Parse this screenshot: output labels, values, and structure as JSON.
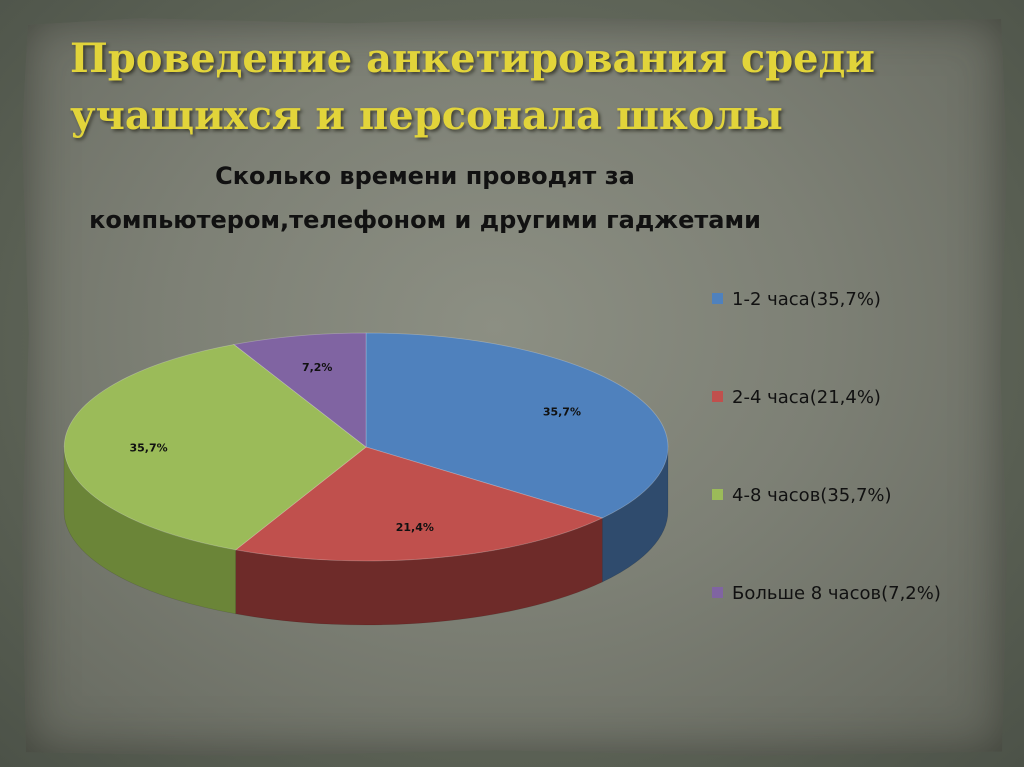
{
  "slide": {
    "title": "Проведение анкетирования среди учащихся и персонала школы"
  },
  "chart_data": {
    "type": "pie",
    "title": "Сколько времени проводят за компьютером,телефоном и другими гаджетами",
    "slices": [
      {
        "name": "1-2 часа(35,7%)",
        "value": 35.7,
        "label": "35,7%",
        "color": "#4f81bd",
        "side": "#2f4b6d"
      },
      {
        "name": "2-4 часа(21,4%)",
        "value": 21.4,
        "label": "21,4%",
        "color": "#c0504d",
        "side": "#6e2b29"
      },
      {
        "name": "4-8 часов(35,7%)",
        "value": 35.7,
        "label": "35,7%",
        "color": "#9bbb59",
        "side": "#6b8538"
      },
      {
        "name": "Больше 8 часов(7,2%)",
        "value": 7.2,
        "label": "7,2%",
        "color": "#8064a2",
        "side": "#4f3a66"
      }
    ],
    "start": "top, clockwise",
    "legend": "right",
    "style": "3d"
  }
}
